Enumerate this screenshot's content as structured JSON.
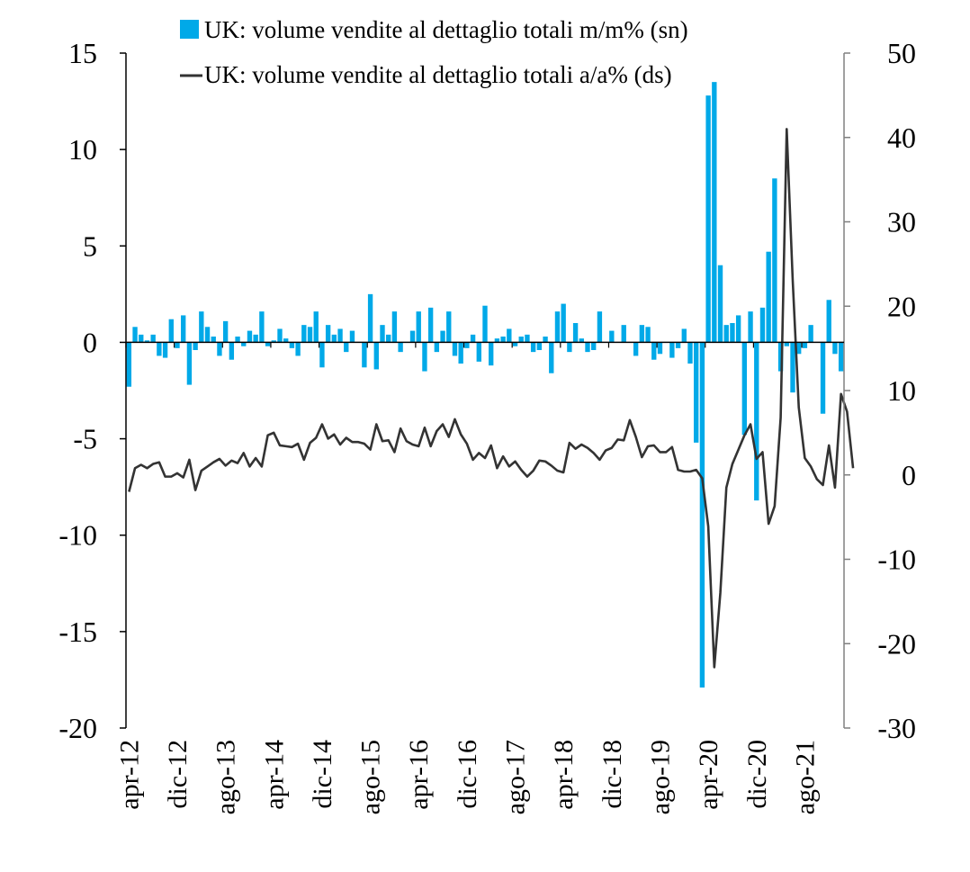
{
  "chart_data": {
    "type": "bar+line",
    "title": "",
    "legend_placement": "top",
    "colors": {
      "bars": "#00A9E8",
      "line": "#333333",
      "axis": "#000000",
      "right_axis": "#808080"
    },
    "left_axis": {
      "ylim": [
        -20,
        15
      ],
      "ticks": [
        "15",
        "10",
        "5",
        "0",
        "-5",
        "-10",
        "-15",
        "-20"
      ]
    },
    "right_axis": {
      "ylim": [
        -30,
        50
      ],
      "ticks": [
        "50",
        "40",
        "30",
        "20",
        "10",
        "0",
        "-10",
        "-20",
        "-30"
      ]
    },
    "x_tick_labels": [
      "apr-12",
      "dic-12",
      "ago-13",
      "apr-14",
      "dic-14",
      "ago-15",
      "apr-16",
      "dic-16",
      "ago-17",
      "apr-18",
      "dic-18",
      "ago-19",
      "apr-20",
      "dic-20",
      "ago-21"
    ],
    "x_range": [
      "2012-04",
      "2022-01"
    ],
    "series": [
      {
        "name": "UK: volume vendite al dettaglio totali m/m% (sn)",
        "type": "bar",
        "axis": "left",
        "values": [
          -2.3,
          0.8,
          0.4,
          0.1,
          0.4,
          -0.7,
          -0.8,
          1.2,
          -0.3,
          1.4,
          -2.2,
          -0.4,
          1.6,
          0.8,
          0.3,
          -0.7,
          1.1,
          -0.9,
          0.3,
          -0.2,
          0.6,
          0.4,
          1.6,
          -0.2,
          0.1,
          0.7,
          0.2,
          -0.3,
          -0.7,
          0.9,
          0.8,
          1.6,
          -1.3,
          0.9,
          0.4,
          0.7,
          -0.5,
          0.6,
          0.0,
          -1.3,
          2.5,
          -1.4,
          0.9,
          0.4,
          1.6,
          -0.5,
          0.0,
          0.6,
          1.6,
          -1.5,
          1.8,
          -0.5,
          0.6,
          1.6,
          -0.7,
          -1.1,
          -0.3,
          0.4,
          -1.0,
          1.9,
          -1.2,
          0.2,
          0.3,
          0.7,
          -0.2,
          0.3,
          0.4,
          -0.5,
          -0.4,
          0.3,
          -1.6,
          1.6,
          2.0,
          -0.5,
          1.0,
          0.2,
          -0.5,
          -0.4,
          1.6,
          0.0,
          0.6,
          0.0,
          0.9,
          0.0,
          -0.7,
          0.9,
          0.8,
          -0.9,
          -0.6,
          0.0,
          -0.8,
          -0.3,
          0.7,
          -1.1,
          -5.2,
          -17.9,
          12.8,
          13.5,
          4.0,
          0.9,
          1.0,
          1.4,
          -4.8,
          1.6,
          -8.2,
          1.8,
          4.7,
          8.5,
          -1.5,
          -0.2,
          -2.6,
          -0.6,
          -0.3,
          0.9,
          0.0,
          -3.7,
          2.2,
          -0.6,
          -1.5
        ]
      },
      {
        "name": "UK: volume vendite al dettaglio totali a/a% (ds)",
        "type": "line",
        "axis": "right",
        "values": [
          -2.0,
          0.8,
          1.2,
          0.8,
          1.3,
          1.5,
          -0.2,
          -0.2,
          0.2,
          -0.3,
          1.8,
          -1.8,
          0.5,
          1.0,
          1.5,
          1.9,
          1.1,
          1.7,
          1.4,
          2.6,
          1.0,
          2.0,
          1.0,
          4.7,
          5.0,
          3.5,
          3.4,
          3.3,
          3.7,
          1.8,
          3.8,
          4.4,
          6.0,
          4.3,
          4.8,
          3.6,
          4.4,
          3.9,
          3.9,
          3.7,
          3.0,
          6.0,
          4.0,
          4.1,
          2.7,
          5.5,
          4.0,
          3.6,
          3.4,
          5.6,
          3.4,
          5.2,
          6.0,
          4.5,
          6.6,
          4.8,
          3.7,
          1.8,
          2.6,
          2.0,
          3.5,
          0.8,
          2.2,
          1.0,
          1.6,
          0.6,
          -0.2,
          0.5,
          1.7,
          1.6,
          1.1,
          0.5,
          0.3,
          3.8,
          3.1,
          3.6,
          3.2,
          2.6,
          1.8,
          2.9,
          3.2,
          4.2,
          4.1,
          6.5,
          4.5,
          2.1,
          3.4,
          3.5,
          2.7,
          2.7,
          3.3,
          0.6,
          0.4,
          0.4,
          0.6,
          -0.4,
          -6.1,
          -22.8,
          -14.0,
          -1.5,
          1.3,
          3.0,
          4.7,
          6.0,
          1.9,
          2.7,
          -5.8,
          -3.7,
          6.8,
          41.0,
          23.0,
          8.0,
          2.0,
          1.0,
          -0.5,
          -1.2,
          3.5,
          -1.5,
          9.6,
          7.5,
          0.8
        ]
      }
    ]
  }
}
